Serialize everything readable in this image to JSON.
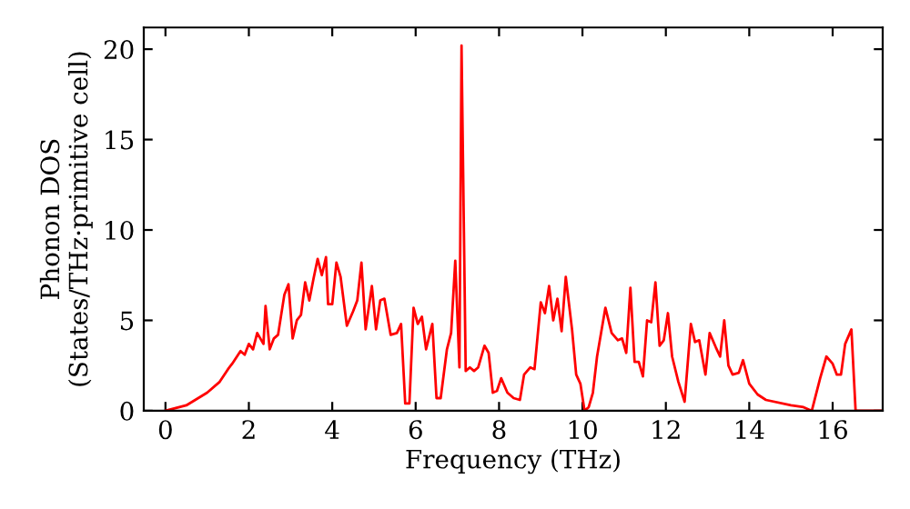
{
  "chart_data": {
    "type": "line",
    "xlabel": "Frequency (THz)",
    "ylabel": "Phonon DOS\n(States/THz·primitive cell)",
    "xlim": [
      -0.52,
      17.2
    ],
    "ylim": [
      0,
      21.2
    ],
    "xticks": [
      0,
      2,
      4,
      6,
      8,
      10,
      12,
      14,
      16
    ],
    "yticks": [
      0,
      5,
      10,
      15,
      20
    ],
    "grid": false,
    "marker": "none",
    "line_style": "solid",
    "series": [
      {
        "color": "#ff0000",
        "x": [
          0,
          0.5,
          1,
          1.3,
          1.5,
          1.6,
          1.8,
          1.9,
          2.0,
          2.1,
          2.2,
          2.35,
          2.4,
          2.5,
          2.6,
          2.7,
          2.85,
          2.95,
          3.05,
          3.15,
          3.25,
          3.35,
          3.45,
          3.55,
          3.65,
          3.75,
          3.85,
          3.9,
          4.0,
          4.1,
          4.2,
          4.35,
          4.5,
          4.6,
          4.7,
          4.8,
          4.95,
          5.05,
          5.15,
          5.25,
          5.4,
          5.55,
          5.65,
          5.75,
          5.85,
          5.95,
          6.05,
          6.15,
          6.25,
          6.4,
          6.5,
          6.6,
          6.75,
          6.85,
          6.95,
          7.05,
          7.1,
          7.2,
          7.3,
          7.4,
          7.5,
          7.65,
          7.75,
          7.85,
          7.95,
          8.05,
          8.2,
          8.35,
          8.5,
          8.6,
          8.75,
          8.85,
          9.0,
          9.1,
          9.2,
          9.3,
          9.4,
          9.5,
          9.6,
          9.75,
          9.85,
          9.95,
          10.05,
          10.15,
          10.25,
          10.35,
          10.55,
          10.7,
          10.85,
          10.95,
          11.05,
          11.15,
          11.25,
          11.35,
          11.45,
          11.55,
          11.65,
          11.75,
          11.85,
          11.95,
          12.05,
          12.15,
          12.3,
          12.45,
          12.6,
          12.7,
          12.8,
          12.95,
          13.05,
          13.2,
          13.3,
          13.4,
          13.5,
          13.6,
          13.75,
          13.85,
          14.0,
          14.2,
          14.4,
          15.0,
          15.3,
          15.5,
          15.7,
          15.85,
          16.0,
          16.1,
          16.2,
          16.3,
          16.45,
          16.55,
          17.2
        ],
        "values": [
          0,
          0.3,
          1.0,
          1.6,
          2.3,
          2.6,
          3.3,
          3.1,
          3.7,
          3.4,
          4.3,
          3.7,
          5.8,
          3.4,
          4.0,
          4.2,
          6.4,
          7.0,
          4.0,
          5.0,
          5.3,
          7.1,
          6.1,
          7.3,
          8.4,
          7.5,
          8.5,
          5.9,
          5.9,
          8.2,
          7.4,
          4.7,
          5.5,
          6.1,
          8.2,
          4.5,
          6.9,
          4.5,
          6.1,
          6.2,
          4.2,
          4.3,
          4.8,
          0.4,
          0.4,
          5.7,
          4.8,
          5.2,
          3.4,
          4.8,
          0.7,
          0.7,
          3.4,
          4.3,
          8.3,
          2.4,
          20.2,
          2.2,
          2.4,
          2.2,
          2.4,
          3.6,
          3.2,
          1.0,
          1.1,
          1.8,
          1.0,
          0.7,
          0.6,
          2.0,
          2.4,
          2.3,
          6.0,
          5.4,
          6.9,
          5.0,
          6.2,
          4.4,
          7.4,
          4.5,
          2.0,
          1.5,
          0.0,
          0.2,
          1.0,
          3.0,
          5.7,
          4.3,
          3.9,
          4.0,
          3.2,
          6.8,
          2.7,
          2.7,
          1.9,
          5.0,
          4.9,
          7.1,
          3.6,
          3.9,
          5.4,
          3.0,
          1.6,
          0.5,
          4.8,
          3.8,
          3.9,
          2.0,
          4.3,
          3.5,
          3.0,
          5.0,
          2.5,
          2.0,
          2.1,
          2.8,
          1.5,
          0.9,
          0.6,
          0.3,
          0.2,
          0.0,
          1.8,
          3.0,
          2.6,
          2.0,
          2.0,
          3.7,
          4.5,
          0.0,
          0.0
        ]
      }
    ]
  }
}
